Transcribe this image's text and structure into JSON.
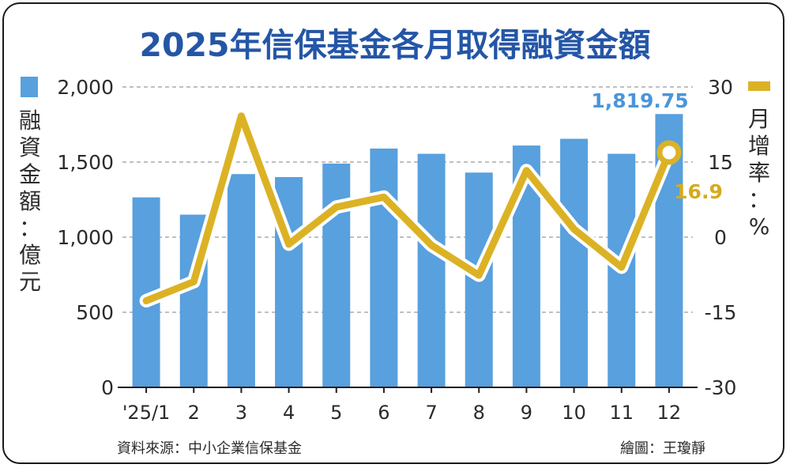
{
  "chart_data": {
    "type": "bar+line",
    "title": "2025年信保基金各月取得融資金額",
    "categories": [
      "'25/1",
      "2",
      "3",
      "4",
      "5",
      "6",
      "7",
      "8",
      "9",
      "10",
      "11",
      "12"
    ],
    "series": [
      {
        "name": "融資金額",
        "type": "bar",
        "axis": "left",
        "color": "#58a0de",
        "values": [
          1265,
          1150,
          1420,
          1400,
          1490,
          1590,
          1555,
          1430,
          1610,
          1655,
          1555,
          1819.75
        ]
      },
      {
        "name": "月增率",
        "type": "line",
        "axis": "right",
        "color": "#dcb225",
        "values": [
          -12.7,
          -8.9,
          24.2,
          -1.4,
          6.0,
          8.0,
          -1.6,
          -7.6,
          13.3,
          1.6,
          -6.0,
          16.9
        ]
      }
    ],
    "y_left": {
      "label": "融資金額：億元",
      "ylim": [
        0,
        2000
      ],
      "ticks": [
        "2,000",
        "1,500",
        "1,000",
        "500",
        "0"
      ],
      "tick_values": [
        2000,
        1500,
        1000,
        500,
        0
      ]
    },
    "y_right": {
      "label": "月增率：%",
      "ylim": [
        -30,
        30
      ],
      "ticks": [
        "30",
        "15",
        "0",
        "-15",
        "-30"
      ],
      "tick_values": [
        30,
        15,
        0,
        -15,
        -30
      ]
    },
    "annotations": {
      "last_bar": "1,819.75",
      "last_point": "16.9"
    },
    "grid": "dashed-horizontal",
    "source": "資料來源：中小企業信保基金",
    "credit": "繪圖：王瓊靜",
    "colors": {
      "title": "#2456a6",
      "bar": "#58a0de",
      "line": "#dcb225",
      "label_bar": "#4a96d8",
      "label_line": "#d6aa1c",
      "axis_text": "#2b2b2b",
      "grid": "#9a9a9a"
    }
  }
}
